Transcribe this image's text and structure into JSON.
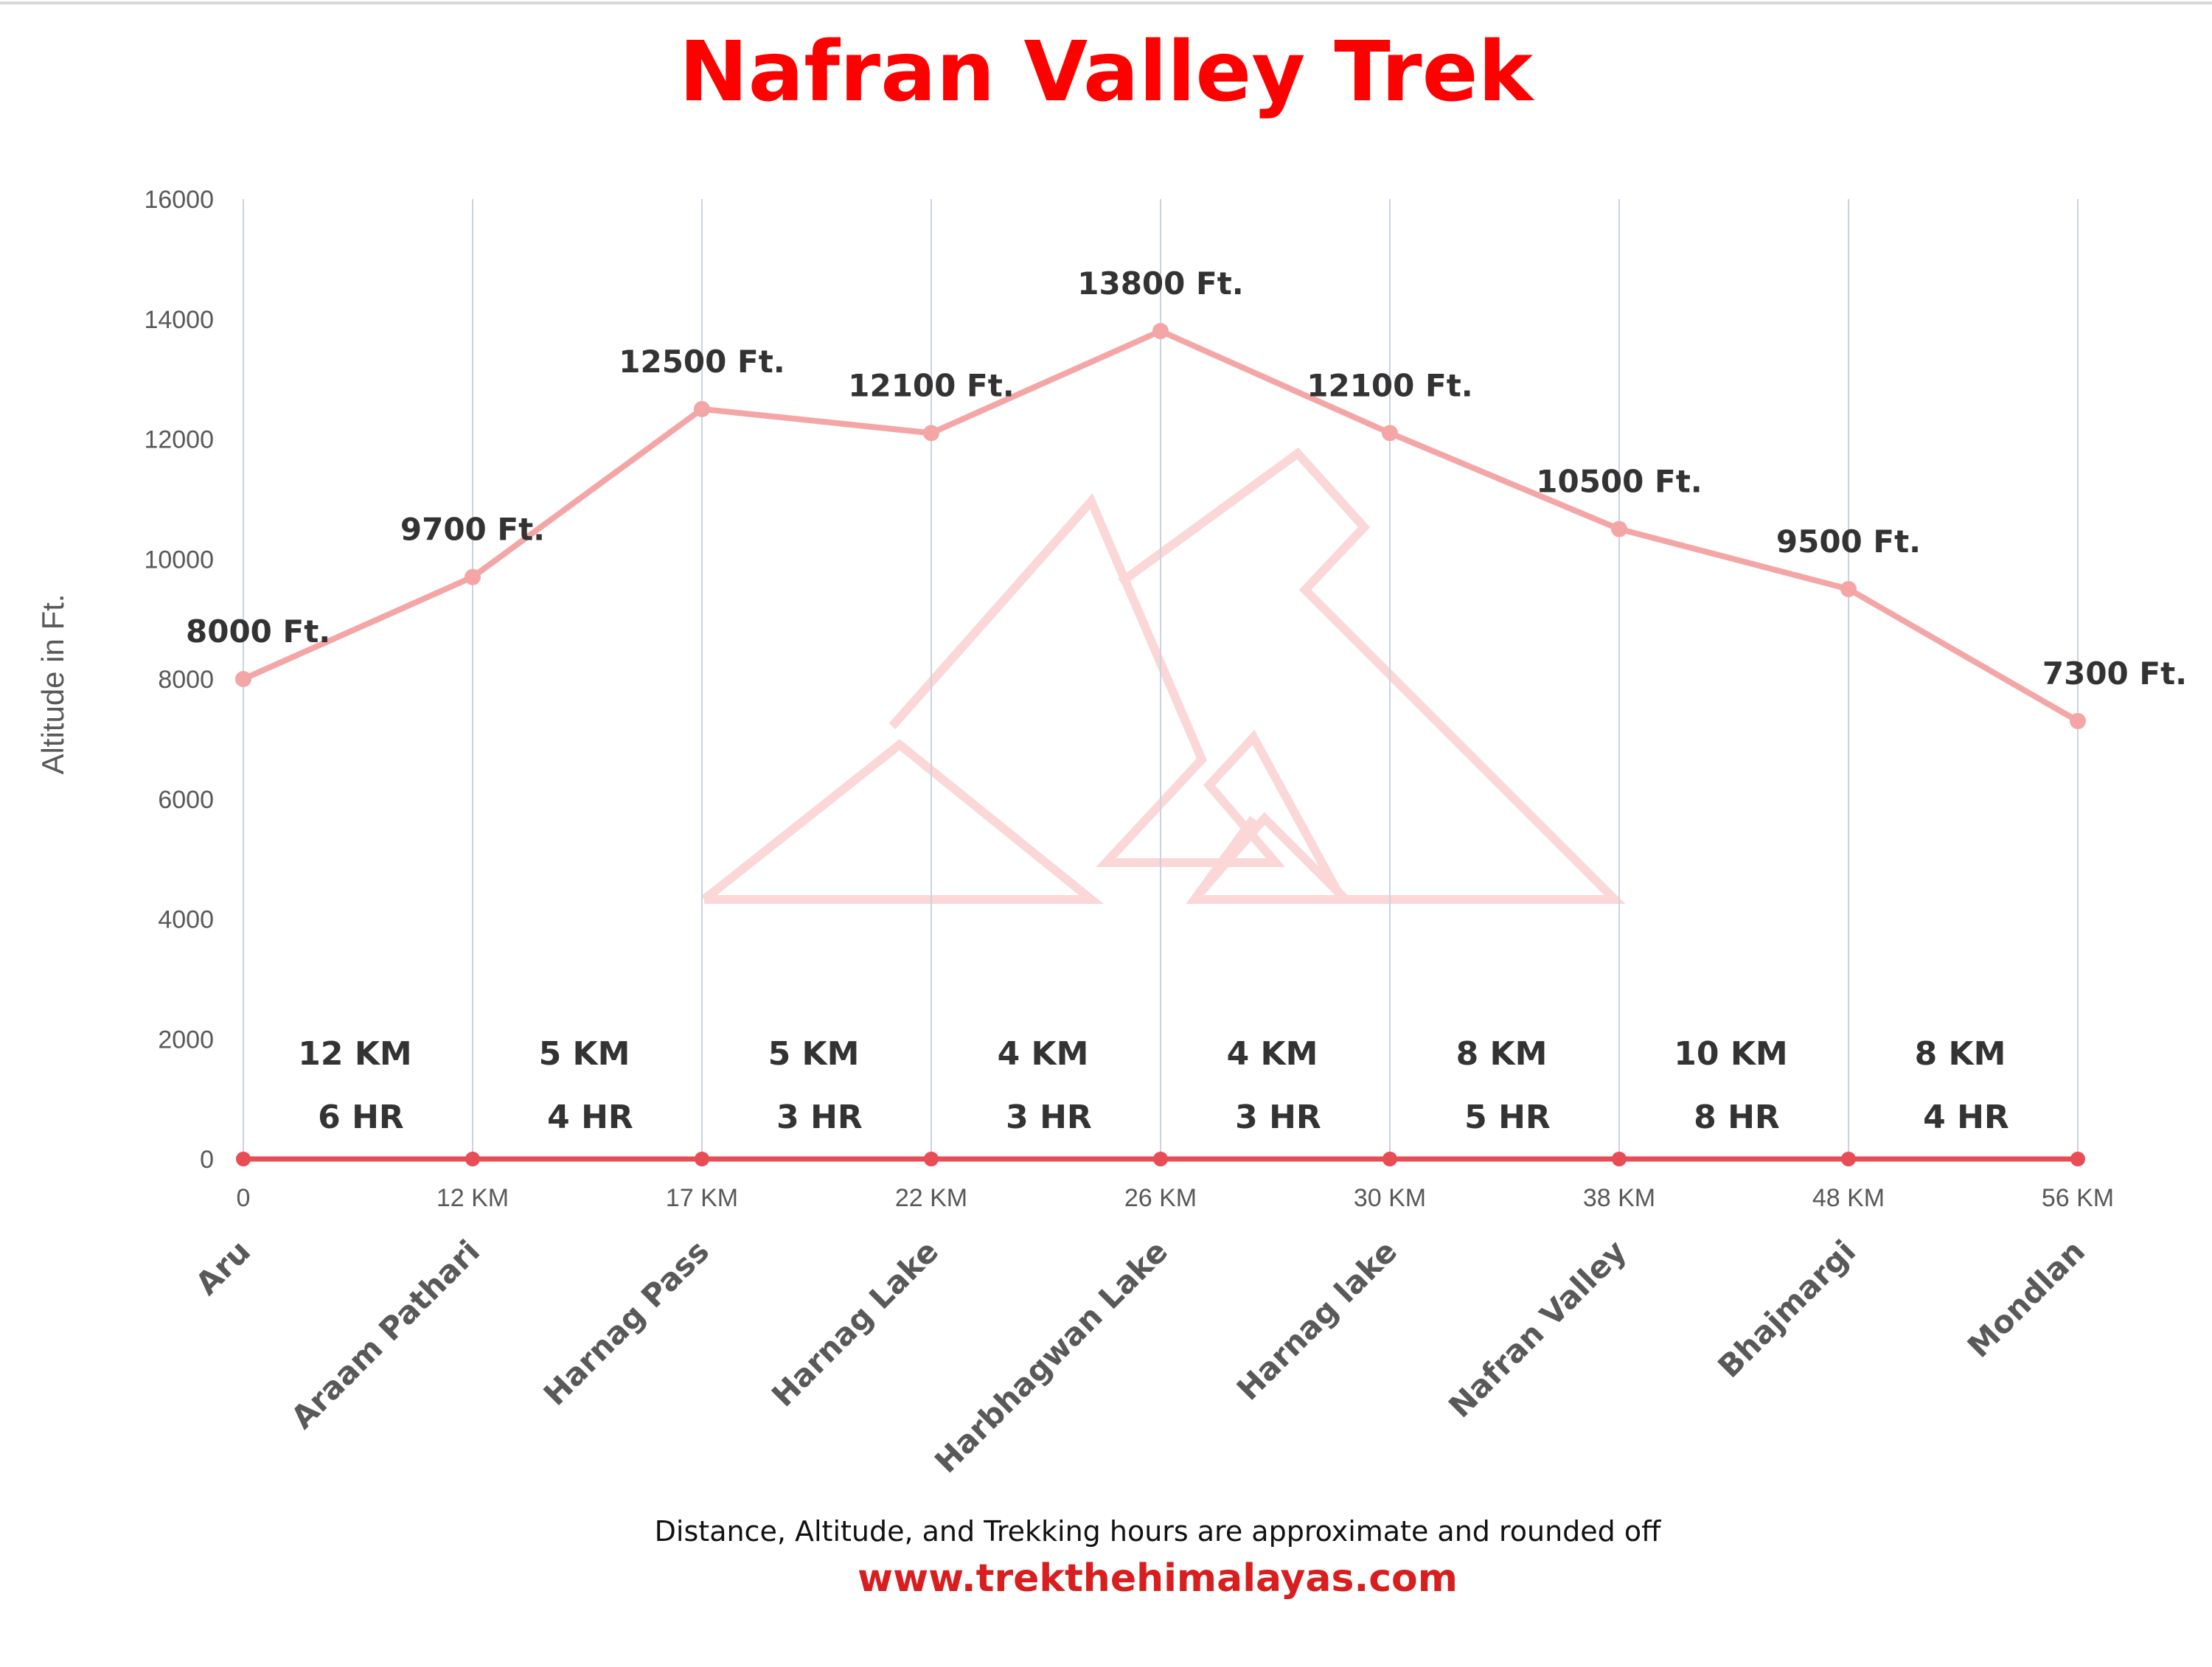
{
  "chart_data": {
    "type": "line",
    "title": "Nafran Valley Trek",
    "ylabel": "Altitude in Ft.",
    "ylim": [
      0,
      16000
    ],
    "yticks": [
      0,
      2000,
      4000,
      6000,
      8000,
      10000,
      12000,
      14000,
      16000
    ],
    "grid": "vertical",
    "categories": [
      "Aru",
      "Araam Pathari",
      "Harnag Pass",
      "Harnag Lake",
      "Harbhagwan Lake",
      "Harnag lake",
      "Nafran Valley",
      "Bhajmargi",
      "Mondlan"
    ],
    "distance_labels": [
      "0",
      "12 KM",
      "17 KM",
      "22 KM",
      "26 KM",
      "30 KM",
      "38 KM",
      "48 KM",
      "56 KM"
    ],
    "series": [
      {
        "values": [
          8000,
          9700,
          12500,
          12100,
          13800,
          12100,
          10500,
          9500,
          7300
        ],
        "data_labels": [
          "8000 Ft.",
          "9700 Ft.",
          "12500 Ft.",
          "12100 Ft.",
          "13800 Ft.",
          "12100 Ft.",
          "10500 Ft.",
          "9500 Ft.",
          "7300 Ft."
        ],
        "color": "#f4a6a6"
      },
      {
        "values": [
          0,
          0,
          0,
          0,
          0,
          0,
          0,
          0,
          0
        ],
        "color": "#e84c55"
      }
    ],
    "segments": [
      {
        "distance": "12 KM",
        "time": "6 HR"
      },
      {
        "distance": "5 KM",
        "time": "4 HR"
      },
      {
        "distance": "5 KM",
        "time": "3 HR"
      },
      {
        "distance": "4 KM",
        "time": "3 HR"
      },
      {
        "distance": "4 KM",
        "time": "3 HR"
      },
      {
        "distance": "8 KM",
        "time": "5 HR"
      },
      {
        "distance": "10 KM",
        "time": "8 HR"
      },
      {
        "distance": "8 KM",
        "time": "4 HR"
      }
    ],
    "footnote": "Distance, Altitude, and Trekking hours are approximate and rounded off",
    "source": "www.trekthehimalayas.com"
  }
}
